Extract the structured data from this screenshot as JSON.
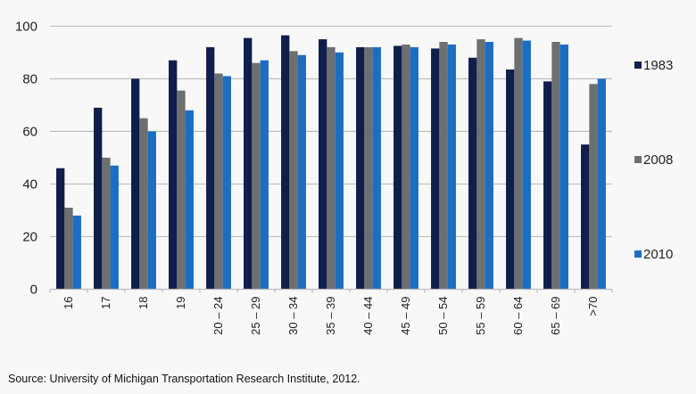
{
  "chart_data": {
    "type": "bar",
    "title": "",
    "xlabel": "",
    "ylabel": "",
    "ylim": [
      0,
      100
    ],
    "yticks": [
      0,
      20,
      40,
      60,
      80,
      100
    ],
    "grid": true,
    "legend_position": "right",
    "categories": [
      "16",
      "17",
      "18",
      "19",
      "20 – 24",
      "25 – 29",
      "30 – 34",
      "35 – 39",
      "40 – 44",
      "45 – 49",
      "50 – 54",
      "55 – 59",
      "60 – 64",
      "65 – 69",
      ">70"
    ],
    "series": [
      {
        "name": "1983",
        "color": "#0f1e4a",
        "values": [
          46,
          69,
          80,
          87,
          92,
          95.5,
          96.5,
          95,
          92,
          92.5,
          91.5,
          88,
          83.5,
          79,
          55
        ]
      },
      {
        "name": "2008",
        "color": "#6d6f71",
        "values": [
          31,
          50,
          65,
          75.5,
          82,
          86,
          90.5,
          92,
          92,
          93,
          94,
          95,
          95.5,
          94,
          78
        ]
      },
      {
        "name": "2010",
        "color": "#1b6ec2",
        "values": [
          28,
          47,
          60,
          68,
          81,
          87,
          89,
          90,
          92,
          92,
          93,
          94,
          94.5,
          93,
          80
        ]
      }
    ]
  },
  "source": "Source: University of Michigan Transportation Research Institute, 2012."
}
